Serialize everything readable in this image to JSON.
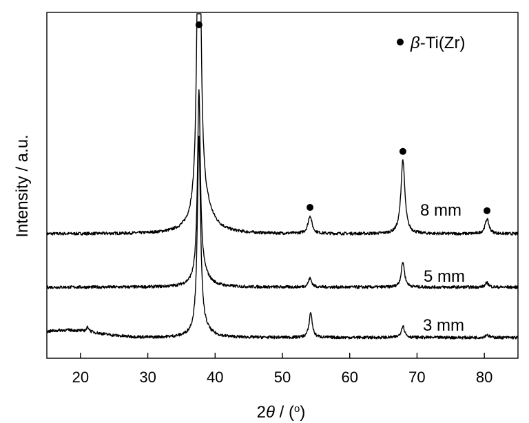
{
  "chart_data": {
    "type": "line",
    "xlabel_number": "2",
    "xlabel_symbol": "θ",
    "xlabel_unit": " / (",
    "xlabel_degree": "o",
    "xlabel_close": ")",
    "ylabel": "Intensity / a.u.",
    "xlim": [
      15,
      85
    ],
    "x_ticks": [
      20,
      30,
      40,
      50,
      60,
      70,
      80
    ],
    "y_ticks_shown": false,
    "grid": false,
    "legend": {
      "position": "top-right",
      "marker": "filled-circle",
      "symbol": "β",
      "label": "-Ti(Zr)"
    },
    "series": [
      {
        "name": "8 mm",
        "baseline": 0.7,
        "peaks": [
          {
            "x": 37.6,
            "height": 2.95,
            "width": 0.28
          },
          {
            "x": 38.2,
            "height": 0.18,
            "width": 1.6
          },
          {
            "x": 54.1,
            "height": 0.12,
            "width": 0.35
          },
          {
            "x": 67.9,
            "height": 0.5,
            "width": 0.35
          },
          {
            "x": 80.4,
            "height": 0.1,
            "width": 0.35
          }
        ]
      },
      {
        "name": "5 mm",
        "baseline": 0.34,
        "peaks": [
          {
            "x": 37.6,
            "height": 1.25,
            "width": 0.25
          },
          {
            "x": 38.0,
            "height": 0.09,
            "width": 1.2
          },
          {
            "x": 54.1,
            "height": 0.06,
            "width": 0.3
          },
          {
            "x": 67.9,
            "height": 0.17,
            "width": 0.3
          },
          {
            "x": 80.4,
            "height": 0.03,
            "width": 0.3
          }
        ]
      },
      {
        "name": "3 mm",
        "baseline": 0.0,
        "peaks": [
          {
            "x": 37.6,
            "height": 1.3,
            "width": 0.28
          },
          {
            "x": 38.0,
            "height": 0.06,
            "width": 1.2
          },
          {
            "x": 54.2,
            "height": 0.17,
            "width": 0.28
          },
          {
            "x": 67.9,
            "height": 0.08,
            "width": 0.3
          },
          {
            "x": 80.4,
            "height": 0.02,
            "width": 0.3
          },
          {
            "x": 21.1,
            "height": 0.03,
            "width": 0.25
          }
        ]
      }
    ],
    "peak_markers": [
      {
        "x": 37.6,
        "series": "8 mm"
      },
      {
        "x": 54.1,
        "series": "8 mm"
      },
      {
        "x": 67.9,
        "series": "8 mm"
      },
      {
        "x": 80.4,
        "series": "8 mm"
      }
    ]
  }
}
